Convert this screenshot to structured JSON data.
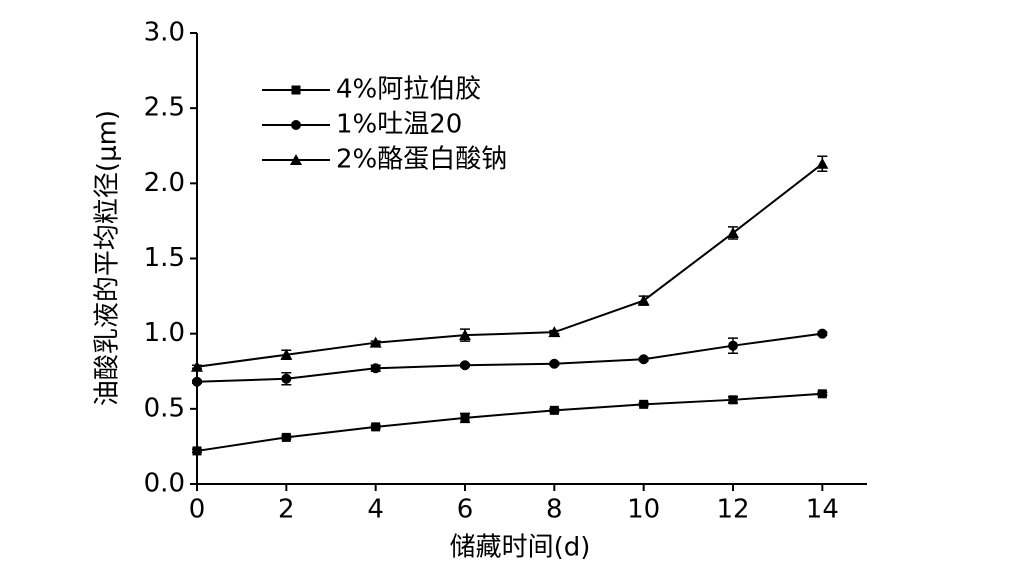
{
  "chart_data": {
    "type": "line",
    "xlabel": "储藏时间(d)",
    "ylabel": "油酸乳液的平均粒径(μm)",
    "x": [
      0,
      2,
      4,
      6,
      8,
      10,
      12,
      14
    ],
    "series": [
      {
        "name": "4%阿拉伯胶",
        "color": "#000000",
        "marker": "square",
        "values": [
          0.22,
          0.31,
          0.38,
          0.44,
          0.49,
          0.53,
          0.56,
          0.6
        ],
        "errors": [
          0.01,
          0.01,
          0.01,
          0.03,
          0.01,
          0.01,
          0.02,
          0.01
        ]
      },
      {
        "name": "1%吐温20",
        "color": "#000000",
        "marker": "circle",
        "values": [
          0.68,
          0.7,
          0.77,
          0.79,
          0.8,
          0.83,
          0.92,
          1.0
        ],
        "errors": [
          0.01,
          0.04,
          0.02,
          0.01,
          0.01,
          0.01,
          0.05,
          0.01
        ]
      },
      {
        "name": "2%酪蛋白酸钠",
        "color": "#000000",
        "marker": "triangle",
        "values": [
          0.78,
          0.86,
          0.94,
          0.99,
          1.01,
          1.22,
          1.67,
          2.13
        ],
        "errors": [
          0.01,
          0.03,
          0.01,
          0.04,
          0.01,
          0.03,
          0.04,
          0.05
        ]
      }
    ],
    "xlim": [
      0,
      15
    ],
    "xticks": [
      0,
      2,
      4,
      6,
      8,
      10,
      12,
      14
    ],
    "ylim": [
      0,
      3
    ],
    "yticks": [
      {
        "value": 0,
        "label": "0.0"
      },
      0.5,
      {
        "value": 1,
        "label": "1.0"
      },
      1.5,
      {
        "value": 2,
        "label": "2.0"
      },
      2.5,
      {
        "value": 3,
        "label": "3.0"
      }
    ],
    "legend": "upper-left"
  }
}
